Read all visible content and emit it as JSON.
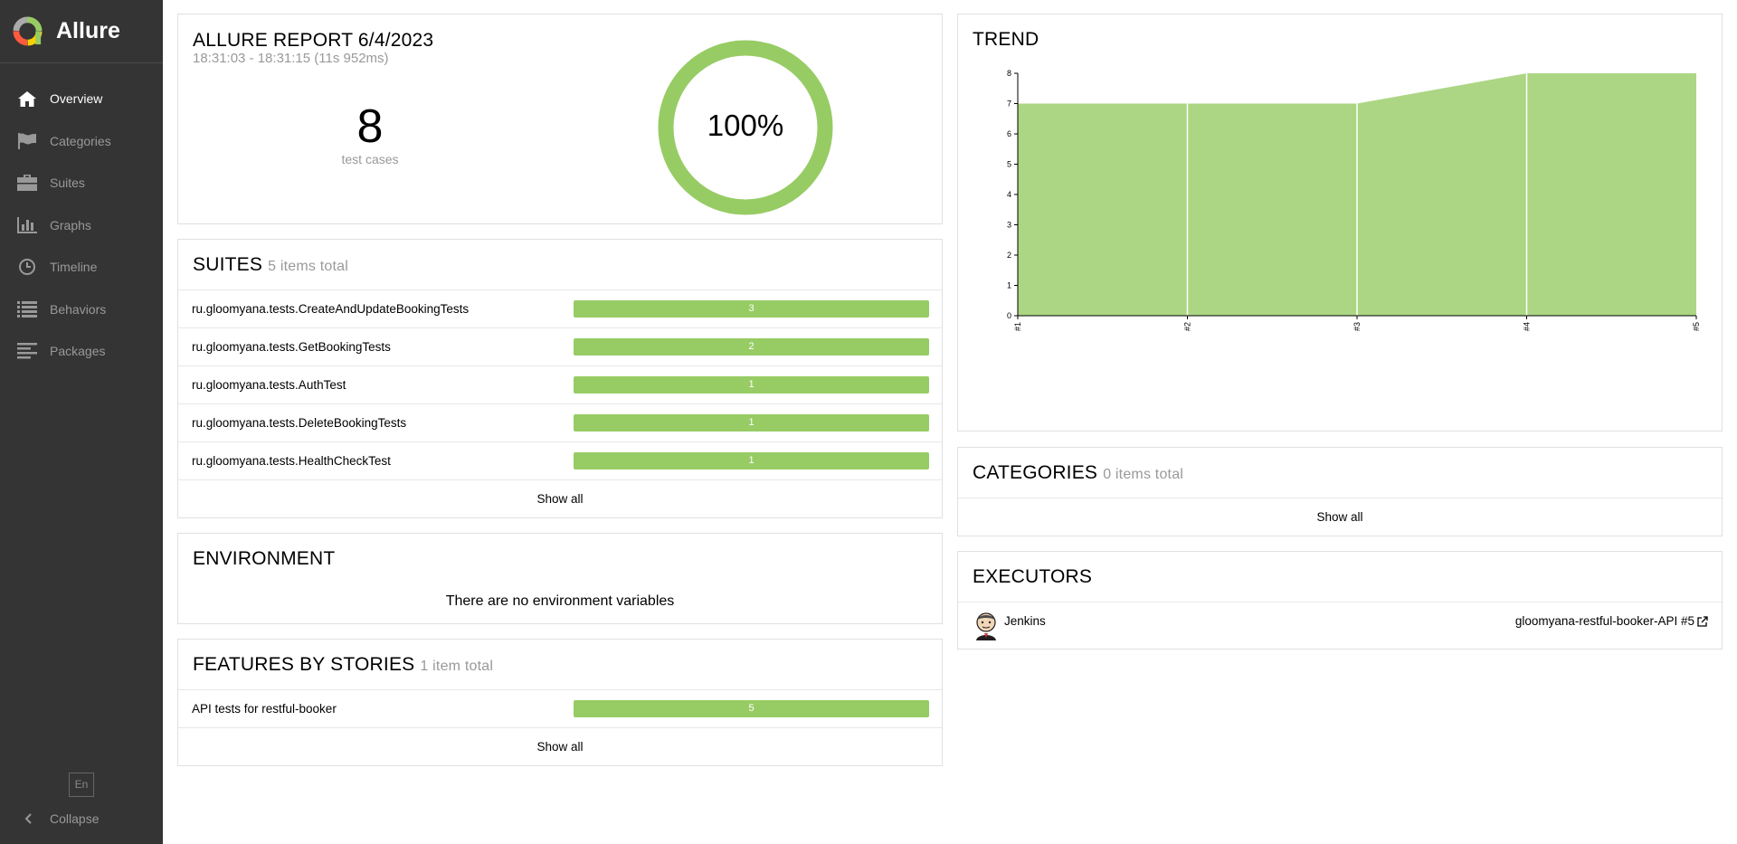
{
  "app": {
    "name": "Allure"
  },
  "sidebar": {
    "items": [
      {
        "label": "Overview",
        "icon": "home-icon"
      },
      {
        "label": "Categories",
        "icon": "flag-icon"
      },
      {
        "label": "Suites",
        "icon": "briefcase-icon"
      },
      {
        "label": "Graphs",
        "icon": "bar-chart-icon"
      },
      {
        "label": "Timeline",
        "icon": "clock-icon"
      },
      {
        "label": "Behaviors",
        "icon": "list-icon"
      },
      {
        "label": "Packages",
        "icon": "align-left-icon"
      }
    ],
    "language": "En",
    "collapse_label": "Collapse"
  },
  "summary": {
    "title": "ALLURE REPORT 6/4/2023",
    "time_range": "18:31:03 - 18:31:15 (11s 952ms)",
    "test_count": "8",
    "test_count_label": "test cases",
    "pass_percent_label": "100%",
    "pass_fraction": 1.0,
    "color_passed": "#97cc64"
  },
  "suites": {
    "title": "SUITES",
    "subtitle": "5 items total",
    "items": [
      {
        "name": "ru.gloomyana.tests.CreateAndUpdateBookingTests",
        "count": "3"
      },
      {
        "name": "ru.gloomyana.tests.GetBookingTests",
        "count": "2"
      },
      {
        "name": "ru.gloomyana.tests.AuthTest",
        "count": "1"
      },
      {
        "name": "ru.gloomyana.tests.DeleteBookingTests",
        "count": "1"
      },
      {
        "name": "ru.gloomyana.tests.HealthCheckTest",
        "count": "1"
      }
    ],
    "show_all": "Show all"
  },
  "environment": {
    "title": "ENVIRONMENT",
    "empty": "There are no environment variables"
  },
  "features": {
    "title": "FEATURES BY STORIES",
    "subtitle": "1 item total",
    "items": [
      {
        "name": "API tests for restful-booker",
        "count": "5"
      }
    ],
    "show_all": "Show all"
  },
  "trend": {
    "title": "TREND",
    "chart_data": {
      "type": "area",
      "x": [
        "#1",
        "#2",
        "#3",
        "#4",
        "#5"
      ],
      "y_ticks": [
        "0",
        "1",
        "2",
        "3",
        "4",
        "5",
        "6",
        "7",
        "8"
      ],
      "series": [
        {
          "values": [
            7,
            7,
            7,
            8,
            8
          ]
        }
      ],
      "ylim": [
        0,
        8
      ],
      "color": "#97cc64"
    }
  },
  "categories": {
    "title": "CATEGORIES",
    "subtitle": "0 items total",
    "show_all": "Show all"
  },
  "executors": {
    "title": "EXECUTORS",
    "items": [
      {
        "name": "Jenkins",
        "build": "gloomyana-restful-booker-API #5"
      }
    ]
  }
}
